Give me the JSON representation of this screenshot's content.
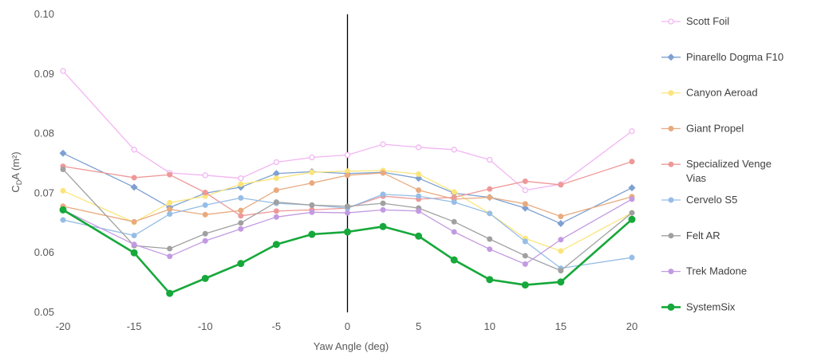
{
  "chart_data": {
    "type": "line",
    "title": "",
    "xlabel": "Yaw Angle (deg)",
    "ylabel_main": "C",
    "ylabel_sub": "D",
    "ylabel_rest": "A (m²)",
    "xlim": [
      -20,
      20
    ],
    "ylim": [
      0.05,
      0.1
    ],
    "x_ticks": [
      "-20",
      "-15",
      "-10",
      "-5",
      "0",
      "5",
      "10",
      "15",
      "20"
    ],
    "y_ticks": [
      "0.05",
      "0.06",
      "0.07",
      "0.08",
      "0.09",
      "0.10"
    ],
    "x": [
      -20,
      -15,
      -12.5,
      -10,
      -7.5,
      -5,
      -2.5,
      0,
      2.5,
      5,
      7.5,
      10,
      12.5,
      15,
      20
    ],
    "grid": false,
    "legend": "right",
    "series": [
      {
        "name": "Scott Foil",
        "color": "#f2b5f2",
        "marker": "open",
        "width": 1.3,
        "values": [
          0.0905,
          0.0773,
          0.0734,
          0.073,
          0.0725,
          0.0752,
          0.076,
          0.0764,
          0.0782,
          0.0777,
          0.0773,
          0.0756,
          0.0705,
          0.0715,
          0.0804
        ]
      },
      {
        "name": "Pinarello Dogma F10",
        "color": "#7ea1d1",
        "marker": "diamond",
        "width": 1.3,
        "values": [
          0.0767,
          0.071,
          0.0676,
          0.07,
          0.071,
          0.0733,
          0.0736,
          0.0733,
          0.0735,
          0.0725,
          0.07,
          0.0693,
          0.0675,
          0.0649,
          0.0709
        ]
      },
      {
        "name": "Canyon Aeroad",
        "color": "#fbe57b",
        "marker": "circle",
        "width": 1.3,
        "values": [
          0.0704,
          0.0651,
          0.0684,
          0.0695,
          0.0715,
          0.0725,
          0.0735,
          0.0737,
          0.0738,
          0.0732,
          0.0702,
          0.0666,
          0.0624,
          0.0603,
          0.0667
        ]
      },
      {
        "name": "Giant Propel",
        "color": "#e8aa7e",
        "marker": "circle",
        "width": 1.3,
        "values": [
          0.0678,
          0.0652,
          0.0673,
          0.0664,
          0.0671,
          0.0705,
          0.0717,
          0.073,
          0.0734,
          0.0705,
          0.069,
          0.0693,
          0.0682,
          0.0661,
          0.0694
        ]
      },
      {
        "name": "Specialized Venge Vias",
        "color": "#ee9898",
        "marker": "circle",
        "width": 1.3,
        "values": [
          0.0745,
          0.0726,
          0.0731,
          0.0701,
          0.0662,
          0.067,
          0.0672,
          0.0675,
          0.0695,
          0.069,
          0.0693,
          0.0707,
          0.072,
          0.0714,
          0.0753
        ]
      },
      {
        "name": "Cervelo S5",
        "color": "#96bde6",
        "marker": "circle",
        "width": 1.3,
        "values": [
          0.0655,
          0.0629,
          0.0665,
          0.068,
          0.0692,
          0.0683,
          0.068,
          0.0675,
          0.0698,
          0.0695,
          0.0685,
          0.0666,
          0.0619,
          0.0574,
          0.0592
        ]
      },
      {
        "name": "Felt AR",
        "color": "#a0a0a0",
        "marker": "circle",
        "width": 1.3,
        "values": [
          0.074,
          0.0612,
          0.0607,
          0.0632,
          0.065,
          0.0685,
          0.068,
          0.0678,
          0.0683,
          0.0675,
          0.0652,
          0.0623,
          0.0595,
          0.057,
          0.0667
        ]
      },
      {
        "name": "Trek Madone",
        "color": "#c29ae2",
        "marker": "circle",
        "width": 1.3,
        "values": [
          0.0672,
          0.0614,
          0.0594,
          0.062,
          0.064,
          0.066,
          0.0668,
          0.0667,
          0.0672,
          0.067,
          0.0635,
          0.0606,
          0.0581,
          0.0622,
          0.069
        ]
      },
      {
        "name": "SystemSix",
        "color": "#16a83a",
        "marker": "circle",
        "width": 2.6,
        "values": [
          0.0672,
          0.06,
          0.0532,
          0.0557,
          0.0582,
          0.0614,
          0.0631,
          0.0635,
          0.0644,
          0.0628,
          0.0588,
          0.0555,
          0.0546,
          0.0551,
          0.0656
        ]
      }
    ]
  }
}
